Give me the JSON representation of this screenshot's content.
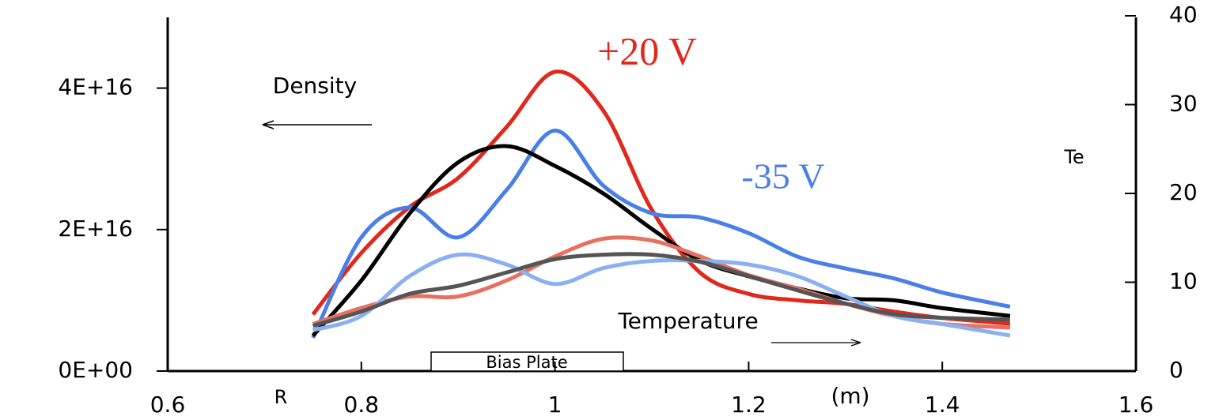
{
  "chart_data": {
    "type": "line",
    "x": [
      0.75,
      0.8,
      0.85,
      0.9,
      0.95,
      1.0,
      1.05,
      1.1,
      1.15,
      1.2,
      1.25,
      1.3,
      1.35,
      1.4,
      1.47
    ],
    "series": [
      {
        "color": "#e0281c",
        "values": [
          8000000000000000.0,
          1.67e+16,
          2.32e+16,
          2.73e+16,
          3.45e+16,
          4.23e+16,
          3.68e+16,
          2.28e+16,
          1.39e+16,
          1.09e+16,
          1e+16,
          9500000000000000.0,
          8400000000000000.0,
          7500000000000000.0,
          6700000000000000.0
        ]
      },
      {
        "color": "#4a7fe8",
        "values": [
          4700000000000000.0,
          1.89e+16,
          2.31e+16,
          1.89e+16,
          2.56e+16,
          3.4e+16,
          2.62e+16,
          2.23e+16,
          2.17e+16,
          1.95e+16,
          1.62e+16,
          1.45e+16,
          1.31e+16,
          1.11e+16,
          9100000000000000.0
        ]
      },
      {
        "color": "#000000",
        "values": [
          5000000000000000.0,
          1.28e+16,
          2.23e+16,
          2.95e+16,
          3.18e+16,
          2.9e+16,
          2.51e+16,
          2.01e+16,
          1.56e+16,
          1.34e+16,
          1.17e+16,
          1.03e+16,
          1e+16,
          8900000000000000.0,
          7800000000000000.0
        ]
      },
      {
        "color": "#e87060",
        "axis": "y2",
        "values": [
          5.3,
          7.1,
          8.4,
          8.4,
          10.2,
          12.9,
          14.9,
          14.7,
          12.9,
          10.8,
          9.3,
          7.6,
          6.2,
          5.3,
          4.9
        ]
      },
      {
        "color": "#8ab0f0",
        "axis": "y2",
        "values": [
          4.6,
          6.2,
          10.7,
          13.1,
          12.0,
          9.8,
          11.6,
          12.4,
          12.4,
          12.0,
          10.7,
          8.4,
          6.2,
          5.3,
          4.0
        ]
      },
      {
        "color": "#555555",
        "axis": "y2",
        "values": [
          5.1,
          6.7,
          8.7,
          9.6,
          11.1,
          12.6,
          13.1,
          13.1,
          12.3,
          10.7,
          9.1,
          7.6,
          6.4,
          6.0,
          5.8
        ]
      }
    ],
    "xlim": [
      0.6,
      1.6
    ],
    "xticks": [
      0.6,
      0.8,
      1,
      1.2,
      1.4,
      1.6
    ],
    "ylim": [
      0,
      5e+16
    ],
    "yticks": [
      {
        "value": 0,
        "label": "0E+00"
      },
      {
        "value": 2e+16,
        "label": "2E+16"
      },
      {
        "value": 4e+16,
        "label": "4E+16"
      }
    ],
    "y2lim": [
      0,
      40
    ],
    "y2ticks": [
      0,
      10,
      20,
      30,
      40
    ],
    "xlabel": "(m)",
    "y2label": "Te",
    "annotations": [
      "+20 V",
      "-35 V",
      "Density",
      "Temperature",
      "R",
      "Bias Plate"
    ]
  }
}
